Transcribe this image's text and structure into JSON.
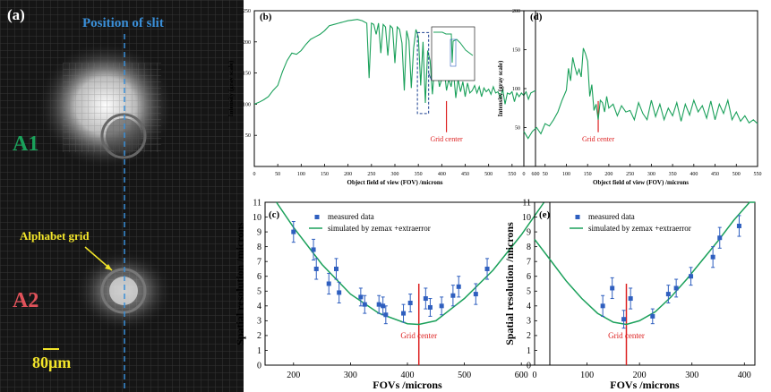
{
  "panel_a": {
    "label": "(a)",
    "slit_label": "Position of slit",
    "region1": "A1",
    "region2": "A2",
    "grid_label": "Alphabet grid",
    "scale_label": "80μm",
    "colors": {
      "slit": "#3a8fd8",
      "a1": "#1aa05a",
      "a2": "#e0525a",
      "yellow": "#f2e52a"
    }
  },
  "chart_data": [
    {
      "panel": "(b)",
      "type": "line",
      "xlabel": "Object field of view (FOV) /microns",
      "ylabel": "Intensity (gray scale)",
      "xlim": [
        0,
        600
      ],
      "ylim": [
        0,
        250
      ],
      "xticks": [
        0,
        50,
        100,
        150,
        200,
        250,
        300,
        350,
        400,
        450,
        500,
        550,
        600
      ],
      "yticks": [
        50,
        100,
        150,
        200,
        250
      ],
      "annotation": "Grid center",
      "marker_x": 410,
      "color": "#1aa05a",
      "x": [
        0,
        10,
        20,
        30,
        40,
        50,
        60,
        70,
        80,
        90,
        100,
        110,
        120,
        130,
        140,
        150,
        160,
        170,
        180,
        190,
        200,
        210,
        220,
        230,
        240,
        245,
        250,
        255,
        260,
        265,
        270,
        275,
        280,
        285,
        290,
        295,
        300,
        305,
        310,
        315,
        320,
        325,
        330,
        335,
        340,
        345,
        350,
        355,
        360,
        365,
        370,
        375,
        380,
        385,
        390,
        395,
        400,
        405,
        410,
        415,
        420,
        425,
        430,
        435,
        440,
        445,
        450,
        455,
        460,
        465,
        470,
        475,
        480,
        485,
        490,
        495,
        500,
        505,
        510,
        515,
        520,
        525,
        530,
        535,
        540,
        545,
        550,
        555,
        560,
        565,
        570,
        575,
        580,
        585,
        590,
        600
      ],
      "y": [
        100,
        103,
        107,
        112,
        122,
        130,
        152,
        170,
        182,
        180,
        186,
        196,
        204,
        208,
        212,
        218,
        226,
        228,
        230,
        232,
        234,
        235,
        236,
        234,
        230,
        142,
        230,
        228,
        212,
        230,
        182,
        228,
        224,
        178,
        226,
        222,
        166,
        224,
        220,
        198,
        122,
        218,
        202,
        126,
        190,
        220,
        208,
        130,
        200,
        102,
        186,
        170,
        116,
        165,
        160,
        128,
        140,
        158,
        122,
        140,
        128,
        152,
        110,
        140,
        120,
        136,
        112,
        134,
        118,
        122,
        130,
        118,
        128,
        112,
        126,
        120,
        124,
        116,
        128,
        118,
        120,
        110,
        124,
        100,
        118,
        116,
        120,
        104,
        118,
        112,
        118,
        114,
        120,
        108,
        118,
        122
      ]
    },
    {
      "panel": "(d)",
      "type": "line",
      "xlabel": "Object field of view (FOV) /microns",
      "ylabel": "Intensity (gray scale)",
      "xlim": [
        0,
        550
      ],
      "ylim": [
        0,
        200
      ],
      "xticks": [
        0,
        50,
        100,
        150,
        200,
        250,
        300,
        350,
        400,
        450,
        500,
        550
      ],
      "yticks": [
        50,
        100,
        150,
        200
      ],
      "annotation": "Grid center",
      "marker_x": 175,
      "color": "#1aa05a",
      "x": [
        0,
        10,
        20,
        30,
        40,
        50,
        60,
        70,
        80,
        90,
        100,
        105,
        110,
        115,
        120,
        125,
        130,
        135,
        140,
        145,
        150,
        155,
        160,
        165,
        170,
        175,
        180,
        185,
        190,
        195,
        200,
        210,
        220,
        230,
        240,
        250,
        260,
        270,
        280,
        290,
        300,
        310,
        320,
        330,
        340,
        350,
        360,
        370,
        380,
        390,
        400,
        410,
        420,
        430,
        440,
        450,
        460,
        470,
        480,
        490,
        500,
        510,
        520,
        530,
        540,
        550
      ],
      "y": [
        45,
        36,
        45,
        50,
        42,
        55,
        52,
        60,
        70,
        85,
        98,
        126,
        110,
        140,
        128,
        118,
        125,
        115,
        152,
        145,
        135,
        90,
        105,
        72,
        80,
        60,
        85,
        82,
        70,
        90,
        75,
        80,
        65,
        78,
        70,
        72,
        60,
        82,
        68,
        60,
        85,
        64,
        80,
        60,
        75,
        65,
        82,
        58,
        80,
        66,
        85,
        70,
        78,
        62,
        84,
        60,
        80,
        68,
        85,
        60,
        70,
        58,
        65,
        56,
        60,
        55
      ]
    },
    {
      "panel": "(c)",
      "type": "scatter",
      "xlabel": "FOVs /microns",
      "ylabel": "Spatial resolution /microns",
      "xlim": [
        150,
        650
      ],
      "ylim": [
        0,
        11
      ],
      "xticks": [
        200,
        300,
        400,
        500,
        600
      ],
      "yticks": [
        0,
        1,
        2,
        3,
        4,
        5,
        6,
        7,
        8,
        9,
        10,
        11
      ],
      "legend": [
        "measured data",
        "simulated by zemax +extraerror"
      ],
      "annotation": "Grid center",
      "marker_x": 420,
      "series": [
        {
          "name": "measured data",
          "color": "#2f5fbf",
          "x": [
            200,
            235,
            240,
            262,
            275,
            280,
            318,
            325,
            350,
            357,
            362,
            393,
            405,
            432,
            440,
            460,
            480,
            490,
            520,
            540
          ],
          "y": [
            9.0,
            7.8,
            6.5,
            5.5,
            6.5,
            4.9,
            4.6,
            4.1,
            4.1,
            4.0,
            3.4,
            3.5,
            4.2,
            4.5,
            3.9,
            4.0,
            4.7,
            5.3,
            4.8,
            6.5
          ],
          "err": [
            0.7,
            0.7,
            0.7,
            0.7,
            0.7,
            0.7,
            0.6,
            0.6,
            0.6,
            0.6,
            0.6,
            0.6,
            0.6,
            0.7,
            0.6,
            0.6,
            0.7,
            0.7,
            0.7,
            0.7
          ]
        },
        {
          "name": "simulated by zemax +extraerror",
          "color": "#1aa05a",
          "x": [
            170,
            200,
            250,
            300,
            350,
            400,
            420,
            450,
            500,
            550,
            600,
            640
          ],
          "y": [
            11.0,
            9.3,
            6.8,
            4.8,
            3.5,
            2.8,
            2.75,
            3.0,
            4.5,
            6.4,
            8.8,
            11.0
          ]
        }
      ]
    },
    {
      "panel": "(e)",
      "type": "scatter",
      "xlabel": "FOVs /microns",
      "ylabel": "Spatial resolution /microns",
      "xlim": [
        0,
        420
      ],
      "ylim": [
        0,
        11
      ],
      "xticks": [
        0,
        100,
        200,
        300,
        400
      ],
      "yticks": [
        0,
        1,
        2,
        3,
        4,
        5,
        6,
        7,
        8,
        9,
        10,
        11
      ],
      "legend": [
        "measured data",
        "simulated by zemax +extraerror"
      ],
      "annotation": "Grid center",
      "marker_x": 175,
      "series": [
        {
          "name": "measured data",
          "color": "#2f5fbf",
          "x": [
            130,
            148,
            170,
            183,
            225,
            255,
            270,
            298,
            340,
            353,
            390
          ],
          "y": [
            4.0,
            5.2,
            3.1,
            4.5,
            3.3,
            4.8,
            5.2,
            6.0,
            7.3,
            8.6,
            9.4
          ],
          "err": [
            0.7,
            0.7,
            0.6,
            0.7,
            0.5,
            0.6,
            0.6,
            0.6,
            0.7,
            0.7,
            0.7
          ]
        },
        {
          "name": "simulated by zemax +extraerror",
          "color": "#1aa05a",
          "x": [
            0,
            30,
            60,
            90,
            120,
            150,
            175,
            200,
            230,
            260,
            290,
            320,
            350,
            380,
            410,
            420
          ],
          "y": [
            8.5,
            7.1,
            5.7,
            4.5,
            3.5,
            2.9,
            2.75,
            3.0,
            3.6,
            4.6,
            5.8,
            7.1,
            8.4,
            9.8,
            11.1,
            11.5
          ]
        }
      ]
    }
  ]
}
